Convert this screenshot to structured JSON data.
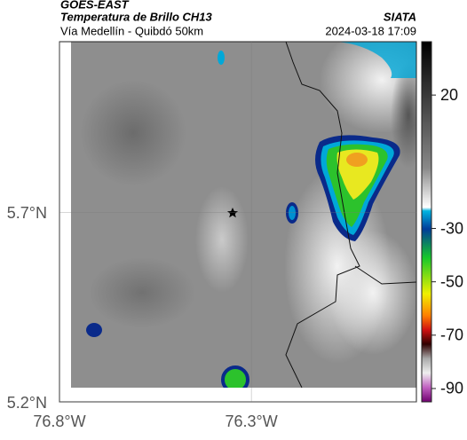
{
  "header": {
    "source": "GOES-EAST",
    "title": "Temperatura de Brillo CH13",
    "subtitle": "Vía Medellín - Quibdó 50km",
    "brand": "SIATA",
    "datetime": "2024-03-18 17:09"
  },
  "map": {
    "xlim": [
      -76.8,
      -75.87
    ],
    "ylim": [
      5.2,
      6.15
    ],
    "xticks": [
      {
        "value": -76.8,
        "label": "76.8°W"
      },
      {
        "value": -76.3,
        "label": "76.3°W"
      }
    ],
    "yticks": [
      {
        "value": 5.7,
        "label": "5.7°N"
      },
      {
        "value": 5.2,
        "label": "5.2°N"
      }
    ]
  },
  "colorbar": {
    "lim": [
      -95,
      40
    ],
    "ticks": [
      20,
      -30,
      -50,
      -70,
      -90
    ]
  }
}
